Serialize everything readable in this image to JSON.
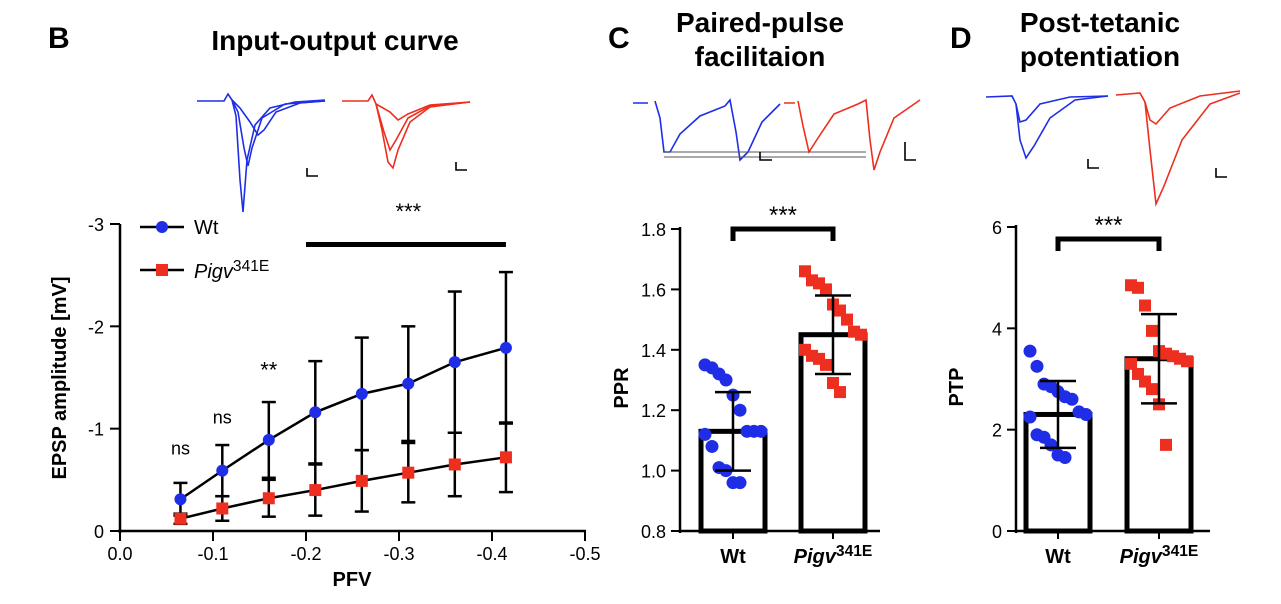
{
  "panels": {
    "B": {
      "letter": "B",
      "title": "Input-output curve"
    },
    "C": {
      "letter": "C",
      "title_line1": "Paired-pulse",
      "title_line2": "facilitaion"
    },
    "D": {
      "letter": "D",
      "title_line1": "Post-tetanic",
      "title_line2": "potentiation"
    }
  },
  "colors": {
    "wt": "#1f2ee6",
    "mutant": "#ee2e1f",
    "axis": "#000000"
  },
  "chart_data": [
    {
      "id": "B",
      "type": "line",
      "title": "Input-output curve",
      "xlabel": "PFV",
      "ylabel": "EPSP amplitude [mV]",
      "xlim": [
        0.0,
        -0.5
      ],
      "ylim": [
        0,
        -3
      ],
      "xticks": [
        "0.0",
        "-0.1",
        "-0.2",
        "-0.3",
        "-0.4",
        "-0.5"
      ],
      "yticks": [
        "0",
        "-1",
        "-2",
        "-3"
      ],
      "series": [
        {
          "name": "Wt",
          "name_suffix": "",
          "x": [
            -0.065,
            -0.11,
            -0.16,
            -0.21,
            -0.26,
            -0.31,
            -0.36,
            -0.415
          ],
          "y": [
            -0.31,
            -0.59,
            -0.89,
            -1.16,
            -1.34,
            -1.44,
            -1.65,
            -1.79
          ],
          "err": [
            0.16,
            0.25,
            0.37,
            0.5,
            0.55,
            0.56,
            0.69,
            0.74
          ]
        },
        {
          "name": "Pigv",
          "name_suffix": "341E",
          "x": [
            -0.065,
            -0.11,
            -0.16,
            -0.21,
            -0.26,
            -0.31,
            -0.36,
            -0.415
          ],
          "y": [
            -0.12,
            -0.22,
            -0.32,
            -0.4,
            -0.49,
            -0.57,
            -0.65,
            -0.72
          ],
          "err": [
            0.05,
            0.12,
            0.18,
            0.25,
            0.3,
            0.29,
            0.31,
            0.34
          ]
        }
      ],
      "annotations": [
        {
          "text": "ns",
          "x": -0.065,
          "y": -0.75
        },
        {
          "text": "ns",
          "x": -0.11,
          "y": -1.05
        },
        {
          "text": "**",
          "x": -0.16,
          "y": -1.5
        },
        {
          "text": "***",
          "x": -0.31,
          "y": -3.05
        }
      ],
      "significance_bar": {
        "x1": -0.2,
        "x2": -0.415,
        "y": -2.8
      },
      "legend_position": "top-left"
    },
    {
      "id": "C",
      "type": "bar",
      "ylabel": "PPR",
      "ylim": [
        0.8,
        1.8
      ],
      "yticks": [
        "0.8",
        "1.0",
        "1.2",
        "1.4",
        "1.6",
        "1.8"
      ],
      "categories": [
        "Wt",
        "Pigv"
      ],
      "category_suffix": [
        "",
        "341E"
      ],
      "values": [
        1.13,
        1.45
      ],
      "sd": [
        0.13,
        0.13
      ],
      "significance": "***",
      "points": [
        [
          1.35,
          1.34,
          1.32,
          1.3,
          1.25,
          1.2,
          1.13,
          1.13,
          1.13,
          1.12,
          1.08,
          1.01,
          1.0,
          0.96,
          0.96
        ],
        [
          1.66,
          1.63,
          1.62,
          1.6,
          1.55,
          1.53,
          1.5,
          1.46,
          1.45,
          1.4,
          1.38,
          1.37,
          1.35,
          1.29,
          1.26
        ]
      ]
    },
    {
      "id": "D",
      "type": "bar",
      "ylabel": "PTP",
      "ylim": [
        0,
        6
      ],
      "yticks": [
        "0",
        "2",
        "4",
        "6"
      ],
      "categories": [
        "Wt",
        "Pigv"
      ],
      "category_suffix": [
        "",
        "341E"
      ],
      "values": [
        2.3,
        3.4
      ],
      "sd": [
        0.66,
        0.88
      ],
      "significance": "***",
      "points": [
        [
          3.55,
          3.25,
          2.9,
          2.85,
          2.75,
          2.65,
          2.6,
          2.35,
          2.3,
          2.25,
          1.9,
          1.85,
          1.7,
          1.5,
          1.45
        ],
        [
          4.85,
          4.8,
          4.45,
          3.95,
          3.55,
          3.5,
          3.45,
          3.4,
          3.35,
          3.3,
          3.1,
          2.95,
          2.8,
          2.5,
          1.7
        ]
      ]
    }
  ]
}
